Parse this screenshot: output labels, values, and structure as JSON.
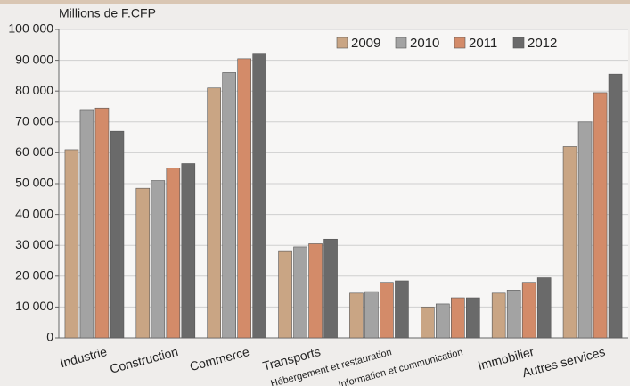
{
  "chart_data": {
    "type": "bar",
    "ylabel": "Millions de F.CFP",
    "categories": [
      "Industrie",
      "Construction",
      "Commerce",
      "Transports",
      "Hébergement et restauration",
      "Information et communication",
      "Immobilier",
      "Autres services"
    ],
    "series": [
      {
        "name": "2009",
        "color": "#c9a584",
        "values": [
          61000,
          48500,
          81000,
          28000,
          14500,
          10000,
          14500,
          62000
        ]
      },
      {
        "name": "2010",
        "color": "#a3a3a3",
        "values": [
          74000,
          51000,
          86000,
          29500,
          15000,
          11000,
          15500,
          70000
        ]
      },
      {
        "name": "2011",
        "color": "#d38b69",
        "values": [
          74500,
          55000,
          90500,
          30500,
          18000,
          13000,
          18000,
          79500
        ]
      },
      {
        "name": "2012",
        "color": "#6a6a6a",
        "values": [
          67000,
          56500,
          92000,
          32000,
          18500,
          13000,
          19500,
          85500
        ]
      }
    ],
    "ylim": [
      0,
      100000
    ],
    "yticks": [
      0,
      {
        "value": 10000,
        "label": "10 000"
      },
      {
        "value": 20000,
        "label": "20 000"
      },
      {
        "value": 30000,
        "label": "30 000"
      },
      {
        "value": 40000,
        "label": "40 000"
      },
      {
        "value": 50000,
        "label": "50 000"
      },
      {
        "value": 60000,
        "label": "60 000"
      },
      {
        "value": 70000,
        "label": "70 000"
      },
      {
        "value": 80000,
        "label": "80 000"
      },
      {
        "value": 90000,
        "label": "90 000"
      },
      {
        "value": 100000,
        "label": "100 000"
      }
    ],
    "grid": true,
    "legend": "top-right"
  }
}
